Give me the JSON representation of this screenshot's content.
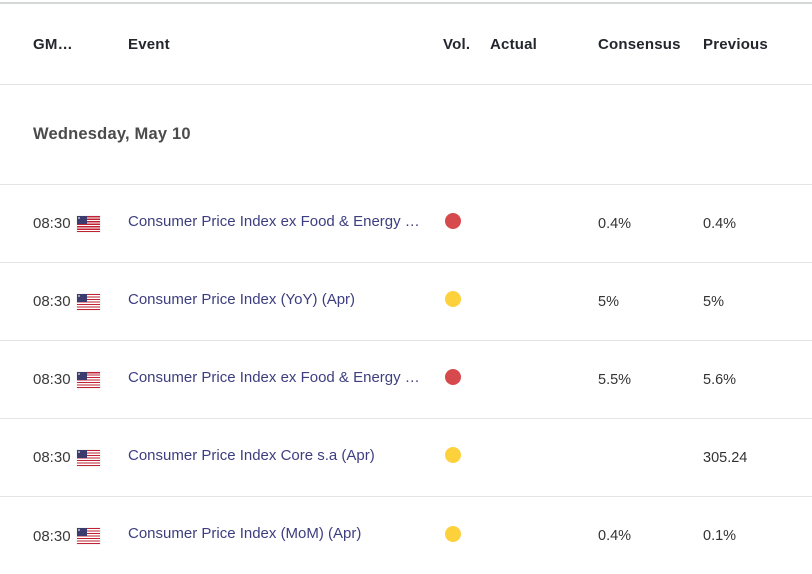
{
  "table": {
    "columns": {
      "gmt": "GM…",
      "event": "Event",
      "vol": "Vol.",
      "actual": "Actual",
      "consensus": "Consensus",
      "previous": "Previous"
    },
    "date_header": "Wednesday, May 10",
    "rows": [
      {
        "time": "08:30",
        "country": "United States",
        "flag_icon": "us-flag-icon",
        "event": "Consumer Price Index ex Food & Energy …",
        "volatility": "high",
        "actual": "",
        "consensus": "0.4%",
        "previous": "0.4%"
      },
      {
        "time": "08:30",
        "country": "United States",
        "flag_icon": "us-flag-icon",
        "event": "Consumer Price Index (YoY) (Apr)",
        "volatility": "medium",
        "actual": "",
        "consensus": "5%",
        "previous": "5%"
      },
      {
        "time": "08:30",
        "country": "United States",
        "flag_icon": "us-flag-icon",
        "event": "Consumer Price Index ex Food & Energy …",
        "volatility": "high",
        "actual": "",
        "consensus": "5.5%",
        "previous": "5.6%"
      },
      {
        "time": "08:30",
        "country": "United States",
        "flag_icon": "us-flag-icon",
        "event": "Consumer Price Index Core s.a (Apr)",
        "volatility": "medium",
        "actual": "",
        "consensus": "",
        "previous": "305.24"
      },
      {
        "time": "08:30",
        "country": "United States",
        "flag_icon": "us-flag-icon",
        "event": "Consumer Price Index (MoM) (Apr)",
        "volatility": "medium",
        "actual": "",
        "consensus": "0.4%",
        "previous": "0.1%"
      }
    ],
    "colors": {
      "volatility": {
        "high": "#d64a4e",
        "medium": "#fdd13c"
      },
      "event_link": "#3d3e80",
      "divider": "#e2e5e5",
      "header_text": "#24262e",
      "value_text": "#333333"
    }
  }
}
